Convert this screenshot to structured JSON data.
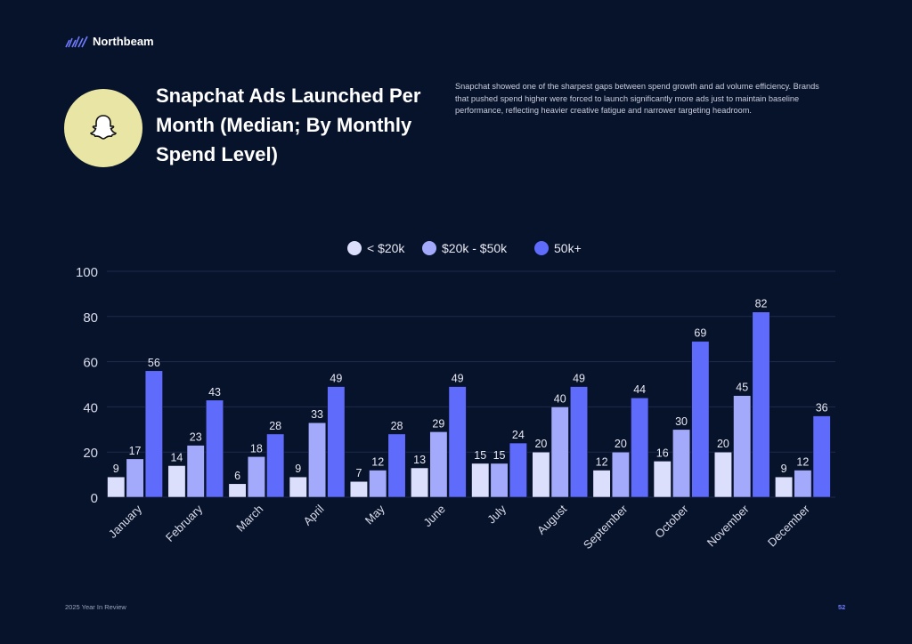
{
  "brand": {
    "name": "Northbeam",
    "logo_icon": "northbeam-logo-icon"
  },
  "header": {
    "icon": "snapchat-ghost-icon",
    "icon_bg": "#e9e6a5",
    "title": "Snapchat Ads Launched Per Month (Median; By Monthly Spend Level)",
    "description": "Snapchat showed one of the sharpest gaps between spend growth and ad volume efficiency. Brands that pushed spend higher were forced to launch significantly more ads just to maintain baseline performance, reflecting heavier creative fatigue and narrower targeting headroom."
  },
  "footer": {
    "left": "2025 Year In Review",
    "page": "52"
  },
  "chart_data": {
    "type": "bar",
    "categories": [
      "January",
      "February",
      "March",
      "April",
      "May",
      "June",
      "July",
      "August",
      "September",
      "October",
      "November",
      "December"
    ],
    "series": [
      {
        "name": "< $20k",
        "color": "#dcdffc",
        "values": [
          9,
          14,
          6,
          9,
          7,
          13,
          15,
          20,
          12,
          16,
          20,
          9
        ]
      },
      {
        "name": "$20k - $50k",
        "color": "#a3aafb",
        "values": [
          17,
          23,
          18,
          33,
          12,
          29,
          15,
          40,
          20,
          30,
          45,
          12
        ]
      },
      {
        "name": "50k+",
        "color": "#5f6cfb",
        "values": [
          56,
          43,
          28,
          49,
          28,
          49,
          24,
          49,
          44,
          69,
          82,
          36
        ]
      }
    ],
    "ylim": [
      0,
      100
    ],
    "yticks": [
      0,
      20,
      40,
      60,
      80,
      100
    ],
    "grid": true,
    "legend": "top-center",
    "data_labels": true
  }
}
